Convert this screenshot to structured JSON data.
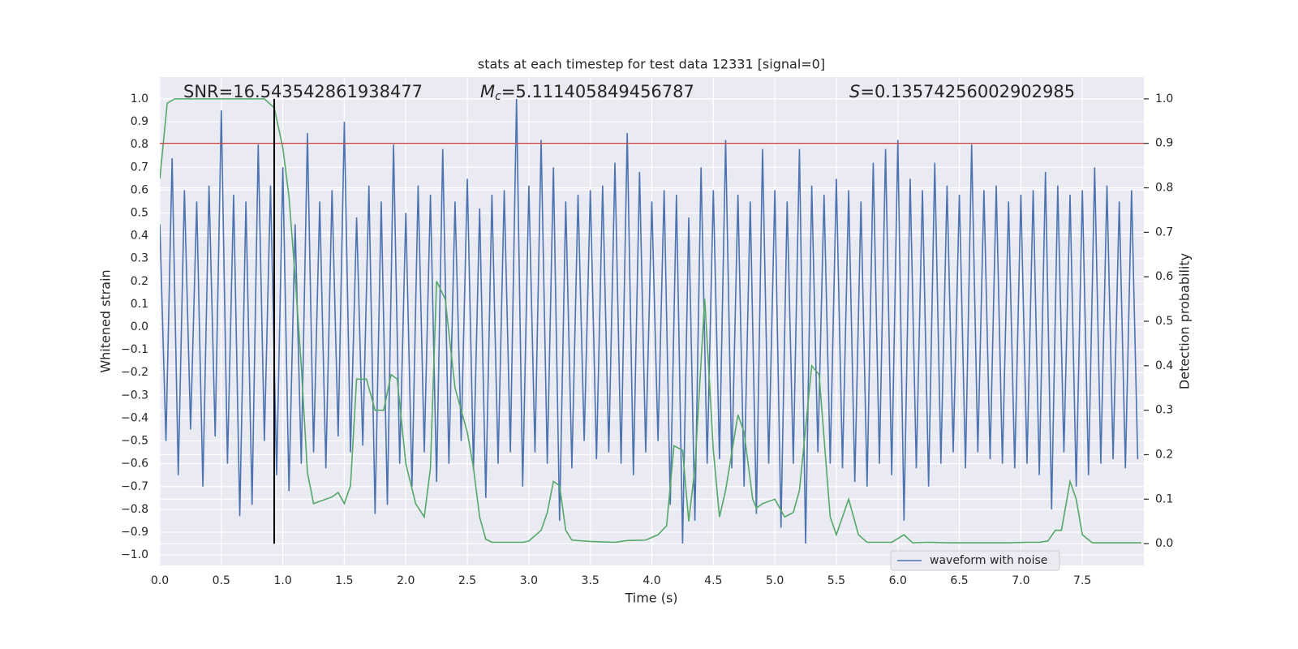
{
  "chart_data": {
    "type": "line",
    "title": "stats at each timestep for test data 12331 [signal=0]",
    "xlabel": "Time (s)",
    "ylabel": "Whitened strain",
    "y2label": "Detection probability",
    "snr_label": "SNR=16.543542861938477",
    "mc_symbol": "M",
    "mc_subscript": "c",
    "mc_value": "=5.111405849456787",
    "s_symbol": "S",
    "s_value": "=0.13574256002902985",
    "xlim": [
      0,
      8
    ],
    "ylim": [
      -1.046,
      1.096
    ],
    "y2lim": [
      -0.049,
      1.049
    ],
    "grid": true,
    "legend": "lower right",
    "background": "#eaeaf2",
    "xticks": [
      {
        "value": 0,
        "label": "0.0"
      },
      {
        "value": 0.5,
        "label": "0.5"
      },
      {
        "value": 1,
        "label": "1.0"
      },
      {
        "value": 1.5,
        "label": "1.5"
      },
      {
        "value": 2,
        "label": "2.0"
      },
      {
        "value": 2.5,
        "label": "2.5"
      },
      {
        "value": 3,
        "label": "3.0"
      },
      {
        "value": 3.5,
        "label": "3.5"
      },
      {
        "value": 4,
        "label": "4.0"
      },
      {
        "value": 4.5,
        "label": "4.5"
      },
      {
        "value": 5,
        "label": "5.0"
      },
      {
        "value": 5.5,
        "label": "5.5"
      },
      {
        "value": 6,
        "label": "6.0"
      },
      {
        "value": 6.5,
        "label": "6.5"
      },
      {
        "value": 7,
        "label": "7.0"
      },
      {
        "value": 7.5,
        "label": "7.5"
      }
    ],
    "yticks": [
      {
        "value": -1,
        "label": "−1.0"
      },
      {
        "value": -0.9,
        "label": "−0.9"
      },
      {
        "value": -0.8,
        "label": "−0.8"
      },
      {
        "value": -0.7,
        "label": "−0.7"
      },
      {
        "value": -0.6,
        "label": "−0.6"
      },
      {
        "value": -0.5,
        "label": "−0.5"
      },
      {
        "value": -0.4,
        "label": "−0.4"
      },
      {
        "value": -0.3,
        "label": "−0.3"
      },
      {
        "value": -0.2,
        "label": "−0.2"
      },
      {
        "value": -0.1,
        "label": "−0.1"
      },
      {
        "value": 0,
        "label": "0.0"
      },
      {
        "value": 0.1,
        "label": "0.1"
      },
      {
        "value": 0.2,
        "label": "0.2"
      },
      {
        "value": 0.3,
        "label": "0.3"
      },
      {
        "value": 0.4,
        "label": "0.4"
      },
      {
        "value": 0.5,
        "label": "0.5"
      },
      {
        "value": 0.6,
        "label": "0.6"
      },
      {
        "value": 0.7,
        "label": "0.7"
      },
      {
        "value": 0.8,
        "label": "0.8"
      },
      {
        "value": 0.9,
        "label": "0.9"
      },
      {
        "value": 1,
        "label": "1.0"
      }
    ],
    "y2ticks": [
      {
        "value": 0,
        "label": "0.0"
      },
      {
        "value": 0.1,
        "label": "0.1"
      },
      {
        "value": 0.2,
        "label": "0.2"
      },
      {
        "value": 0.3,
        "label": "0.3"
      },
      {
        "value": 0.4,
        "label": "0.4"
      },
      {
        "value": 0.5,
        "label": "0.5"
      },
      {
        "value": 0.6,
        "label": "0.6"
      },
      {
        "value": 0.7,
        "label": "0.7"
      },
      {
        "value": 0.8,
        "label": "0.8"
      },
      {
        "value": 0.9,
        "label": "0.9"
      },
      {
        "value": 1,
        "label": "1.0"
      }
    ],
    "hlines": [
      {
        "value": 0.9,
        "axis": "y2",
        "color": "#c44e52"
      }
    ],
    "vlines": [
      {
        "value": 0.93,
        "axis": "y2",
        "ymin": 0,
        "ymax": 1,
        "color": "#000000"
      }
    ],
    "series": [
      {
        "name": "waveform with noise",
        "color": "#4c72b0",
        "x": [
          0,
          0.05,
          0.1,
          0.15,
          0.2,
          0.25,
          0.3,
          0.35,
          0.4,
          0.45,
          0.5,
          0.55,
          0.6,
          0.65,
          0.7,
          0.75,
          0.8,
          0.85,
          0.9,
          0.95,
          1,
          1.05,
          1.1,
          1.15,
          1.2,
          1.25,
          1.3,
          1.35,
          1.4,
          1.45,
          1.5,
          1.55,
          1.6,
          1.65,
          1.7,
          1.75,
          1.8,
          1.85,
          1.9,
          1.95,
          2,
          2.05,
          2.1,
          2.15,
          2.2,
          2.25,
          2.3,
          2.35,
          2.4,
          2.45,
          2.5,
          2.55,
          2.6,
          2.65,
          2.7,
          2.75,
          2.8,
          2.85,
          2.9,
          2.95,
          3,
          3.05,
          3.1,
          3.15,
          3.2,
          3.25,
          3.3,
          3.35,
          3.4,
          3.45,
          3.5,
          3.55,
          3.6,
          3.65,
          3.7,
          3.75,
          3.8,
          3.85,
          3.9,
          3.95,
          4,
          4.05,
          4.1,
          4.15,
          4.2,
          4.25,
          4.3,
          4.35,
          4.4,
          4.45,
          4.5,
          4.55,
          4.6,
          4.65,
          4.7,
          4.75,
          4.8,
          4.85,
          4.9,
          4.95,
          5,
          5.05,
          5.1,
          5.15,
          5.2,
          5.25,
          5.3,
          5.35,
          5.4,
          5.45,
          5.5,
          5.55,
          5.6,
          5.65,
          5.7,
          5.75,
          5.8,
          5.85,
          5.9,
          5.95,
          6,
          6.05,
          6.1,
          6.15,
          6.2,
          6.25,
          6.3,
          6.35,
          6.4,
          6.45,
          6.5,
          6.55,
          6.6,
          6.65,
          6.7,
          6.75,
          6.8,
          6.85,
          6.9,
          6.95,
          7,
          7.05,
          7.1,
          7.15,
          7.2,
          7.25,
          7.3,
          7.35,
          7.4,
          7.45,
          7.5,
          7.55,
          7.6,
          7.65,
          7.7,
          7.75,
          7.8,
          7.85,
          7.9,
          7.95
        ],
        "values": [
          0.45,
          -0.5,
          0.74,
          -0.65,
          0.6,
          -0.45,
          0.55,
          -0.7,
          0.62,
          -0.48,
          0.95,
          -0.6,
          0.58,
          -0.83,
          0.55,
          -0.78,
          0.8,
          -0.5,
          0.62,
          -0.65,
          0.7,
          -0.72,
          0.45,
          -0.6,
          0.85,
          -0.55,
          0.55,
          -0.62,
          0.6,
          -0.48,
          0.9,
          -0.55,
          0.48,
          -0.52,
          0.62,
          -0.82,
          0.55,
          -0.78,
          0.8,
          -0.6,
          0.5,
          -0.7,
          0.62,
          -0.55,
          0.58,
          -0.68,
          0.78,
          -0.6,
          0.55,
          -0.5,
          0.65,
          -0.62,
          0.52,
          -0.75,
          0.58,
          -0.6,
          0.6,
          -0.55,
          1.0,
          -0.7,
          0.62,
          -0.55,
          0.82,
          -0.6,
          0.7,
          -0.85,
          0.55,
          -0.62,
          0.58,
          -0.5,
          0.6,
          -0.58,
          0.62,
          -0.55,
          0.72,
          -0.6,
          0.85,
          -0.65,
          0.68,
          -0.55,
          0.55,
          -0.5,
          0.6,
          -0.78,
          0.58,
          -0.95,
          0.48,
          -0.85,
          0.7,
          -0.6,
          0.6,
          -0.58,
          0.82,
          -0.62,
          0.58,
          -0.7,
          0.55,
          -0.82,
          0.78,
          -0.6,
          0.6,
          -0.88,
          0.55,
          -0.6,
          0.78,
          -0.95,
          0.62,
          -0.55,
          0.58,
          -0.6,
          0.65,
          -0.62,
          0.6,
          -0.68,
          0.55,
          -0.7,
          0.72,
          -0.6,
          0.78,
          -0.65,
          0.82,
          -0.85,
          0.65,
          -0.62,
          0.6,
          -0.7,
          0.72,
          -0.6,
          0.62,
          -0.55,
          0.58,
          -0.62,
          0.8,
          -0.55,
          0.6,
          -0.58,
          0.62,
          -0.6,
          0.55,
          -0.62,
          0.58,
          -0.6,
          0.6,
          -0.65,
          0.68,
          -0.8,
          0.62,
          -0.55,
          0.58,
          -0.7,
          0.6,
          -0.65,
          0.7,
          -0.6,
          0.62,
          -0.58,
          0.55,
          -0.62,
          0.6,
          -0.58
        ]
      },
      {
        "color": "#55a868",
        "axis": "y2",
        "x": [
          0,
          0.06,
          0.12,
          0.2,
          0.5,
          0.85,
          0.93,
          1,
          1.05,
          1.1,
          1.15,
          1.2,
          1.25,
          1.3,
          1.4,
          1.45,
          1.5,
          1.55,
          1.6,
          1.68,
          1.75,
          1.82,
          1.88,
          1.93,
          2,
          2.08,
          2.15,
          2.2,
          2.25,
          2.32,
          2.4,
          2.5,
          2.55,
          2.6,
          2.65,
          2.7,
          2.95,
          3,
          3.1,
          3.15,
          3.2,
          3.25,
          3.3,
          3.35,
          3.5,
          3.7,
          3.8,
          3.95,
          4.05,
          4.12,
          4.18,
          4.25,
          4.3,
          4.35,
          4.43,
          4.5,
          4.55,
          4.6,
          4.7,
          4.75,
          4.82,
          4.85,
          4.9,
          5,
          5.08,
          5.15,
          5.2,
          5.3,
          5.36,
          5.45,
          5.5,
          5.6,
          5.68,
          5.75,
          5.95,
          6.05,
          6.12,
          6.25,
          6.4,
          6.9,
          7.05,
          7.15,
          7.22,
          7.28,
          7.33,
          7.4,
          7.45,
          7.5,
          7.58,
          7.7,
          7.98
        ],
        "values": [
          0.82,
          0.99,
          1.0,
          1.0,
          1.0,
          1.0,
          0.98,
          0.89,
          0.78,
          0.6,
          0.4,
          0.16,
          0.09,
          0.095,
          0.105,
          0.115,
          0.09,
          0.13,
          0.37,
          0.37,
          0.3,
          0.3,
          0.38,
          0.37,
          0.18,
          0.09,
          0.06,
          0.17,
          0.59,
          0.55,
          0.35,
          0.25,
          0.17,
          0.06,
          0.01,
          0.003,
          0.003,
          0.006,
          0.03,
          0.07,
          0.14,
          0.13,
          0.03,
          0.008,
          0.005,
          0.003,
          0.007,
          0.008,
          0.02,
          0.04,
          0.22,
          0.21,
          0.05,
          0.17,
          0.55,
          0.21,
          0.06,
          0.12,
          0.29,
          0.25,
          0.1,
          0.08,
          0.09,
          0.1,
          0.06,
          0.07,
          0.12,
          0.4,
          0.38,
          0.06,
          0.02,
          0.1,
          0.02,
          0.003,
          0.003,
          0.02,
          0.002,
          0.003,
          0.002,
          0.002,
          0.003,
          0.003,
          0.006,
          0.03,
          0.03,
          0.14,
          0.1,
          0.02,
          0.002,
          0.002,
          0.002
        ]
      }
    ]
  }
}
